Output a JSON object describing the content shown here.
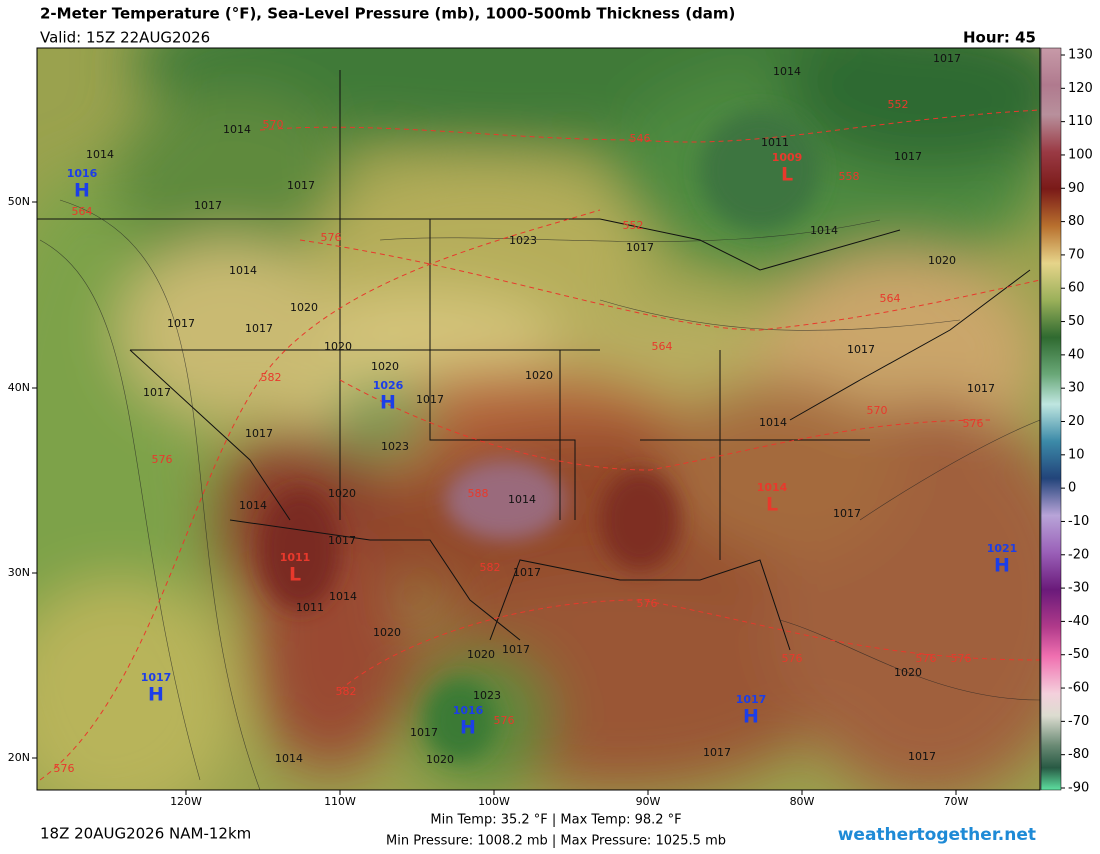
{
  "header": {
    "title": "2-Meter Temperature (°F), Sea-Level Pressure (mb), 1000-500mb Thickness (dam)",
    "valid": "Valid: 15Z 22AUG2026",
    "hour": "Hour: 45"
  },
  "map": {
    "lon_labels": [
      "120W",
      "110W",
      "100W",
      "90W",
      "80W",
      "70W"
    ],
    "lat_labels": [
      "50N",
      "40N",
      "30N",
      "20N"
    ],
    "pressure_centers": [
      {
        "symbol": "H",
        "value": "1016"
      },
      {
        "symbol": "L",
        "value": "1009"
      },
      {
        "symbol": "H",
        "value": "1026"
      },
      {
        "symbol": "L",
        "value": "1014"
      },
      {
        "symbol": "L",
        "value": "1011"
      },
      {
        "symbol": "H",
        "value": "1021"
      },
      {
        "symbol": "H",
        "value": "1017"
      },
      {
        "symbol": "H",
        "value": "1016"
      },
      {
        "symbol": "H",
        "value": "1017"
      }
    ],
    "isobar_labels": [
      "1014",
      "1017",
      "1014",
      "1014",
      "1017",
      "1017",
      "1011",
      "1017",
      "1023",
      "1017",
      "1014",
      "1014",
      "1020",
      "1017",
      "1017",
      "1020",
      "1020",
      "1020",
      "1017",
      "1020",
      "1017",
      "1017",
      "1017",
      "1023",
      "1014",
      "1017",
      "1020",
      "1014",
      "1014",
      "1017",
      "1017",
      "1017",
      "1011",
      "1014",
      "1020",
      "1020",
      "1017",
      "1023",
      "1017",
      "1020",
      "1014",
      "1017",
      "1020",
      "1017"
    ],
    "thickness_labels": [
      "570",
      "546",
      "552",
      "558",
      "552",
      "564",
      "576",
      "564",
      "564",
      "582",
      "570",
      "576",
      "576",
      "588",
      "582",
      "576",
      "576",
      "576",
      "576",
      "582",
      "576",
      "576"
    ]
  },
  "colorbar": {
    "lim": [
      -90,
      130
    ],
    "ticks": [
      130,
      120,
      110,
      100,
      90,
      80,
      70,
      60,
      50,
      40,
      30,
      20,
      10,
      0,
      -10,
      -20,
      -30,
      -40,
      -50,
      -60,
      -70,
      -80,
      -90
    ]
  },
  "footer": {
    "run": "18Z 20AUG2026 NAM-12km",
    "temp_range": "Min Temp:  35.2 °F | Max Temp:  98.2 °F",
    "pressure_range": "Min Pressure: 1008.2 mb | Max Pressure: 1025.5 mb",
    "site": "weathertogether.net"
  }
}
